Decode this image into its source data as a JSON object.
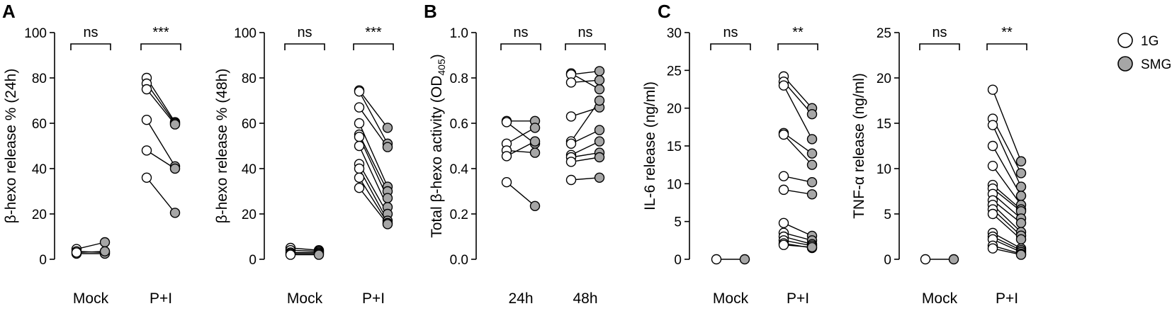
{
  "figure": {
    "panel_letters": [
      "A",
      "B",
      "C"
    ],
    "legend": [
      {
        "label": "1G",
        "color": "#ffffff"
      },
      {
        "label": "SMG",
        "color": "#a6a6a6"
      }
    ]
  },
  "chart_data": [
    {
      "type": "scatter",
      "panel": "A",
      "ylabel": "β-hexo release % (24h)",
      "ylim": [
        0,
        100
      ],
      "yticks": [
        "0",
        "20",
        "40",
        "60",
        "80",
        "100"
      ],
      "categories": [
        "Mock",
        "P+I"
      ],
      "significance": [
        "ns",
        "***"
      ],
      "series": [
        {
          "category": "Mock",
          "pairs": [
            [
              4.5,
              7.5
            ],
            [
              3.5,
              3.0
            ],
            [
              2.5,
              2.5
            ],
            [
              3.0,
              3.5
            ]
          ]
        },
        {
          "category": "P+I",
          "pairs": [
            [
              80,
              60.5
            ],
            [
              77.5,
              60
            ],
            [
              75,
              59.5
            ],
            [
              61.5,
              41
            ],
            [
              48,
              40
            ],
            [
              36,
              20.5
            ]
          ]
        }
      ]
    },
    {
      "type": "scatter",
      "panel": "A",
      "ylabel": "β-hexo release % (48h)",
      "ylim": [
        0,
        100
      ],
      "yticks": [
        "0",
        "20",
        "40",
        "60",
        "80",
        "100"
      ],
      "categories": [
        "Mock",
        "P+I"
      ],
      "significance": [
        "ns",
        "***"
      ],
      "series": [
        {
          "category": "Mock",
          "pairs": [
            [
              5,
              4
            ],
            [
              4,
              3.5
            ],
            [
              3,
              3
            ],
            [
              2.5,
              2.5
            ],
            [
              2,
              2
            ]
          ]
        },
        {
          "category": "P+I",
          "pairs": [
            [
              74.5,
              58
            ],
            [
              74,
              51
            ],
            [
              67,
              49.5
            ],
            [
              60,
              32
            ],
            [
              55,
              30
            ],
            [
              54,
              27
            ],
            [
              50,
              23
            ],
            [
              42,
              20
            ],
            [
              40,
              17
            ],
            [
              36,
              16
            ],
            [
              31.5,
              15.5
            ]
          ]
        }
      ]
    },
    {
      "type": "scatter",
      "panel": "B",
      "ylabel": "Total β-hexo activity (OD",
      "ylabel_subscript": "405",
      "ylabel_suffix": ")",
      "ylim": [
        0,
        1
      ],
      "yticks": [
        "0.0",
        "0.2",
        "0.4",
        "0.6",
        "0.8",
        "1.0"
      ],
      "categories": [
        "24h",
        "48h"
      ],
      "significance": [
        "ns",
        "ns"
      ],
      "series": [
        {
          "category": "24h",
          "pairs": [
            [
              0.61,
              0.61
            ],
            [
              0.605,
              0.51
            ],
            [
              0.51,
              0.58
            ],
            [
              0.48,
              0.47
            ],
            [
              0.455,
              0.52
            ],
            [
              0.34,
              0.235
            ]
          ]
        },
        {
          "category": "48h",
          "pairs": [
            [
              0.82,
              0.75
            ],
            [
              0.815,
              0.83
            ],
            [
              0.78,
              0.79
            ],
            [
              0.63,
              0.67
            ],
            [
              0.52,
              0.7
            ],
            [
              0.51,
              0.57
            ],
            [
              0.46,
              0.52
            ],
            [
              0.45,
              0.47
            ],
            [
              0.43,
              0.45
            ],
            [
              0.35,
              0.36
            ]
          ]
        }
      ]
    },
    {
      "type": "scatter",
      "panel": "C",
      "ylabel": "IL-6 release (ng/ml)",
      "ylim": [
        0,
        30
      ],
      "yticks": [
        "0",
        "5",
        "10",
        "15",
        "20",
        "25",
        "30"
      ],
      "categories": [
        "Mock",
        "P+I"
      ],
      "significance": [
        "ns",
        "**"
      ],
      "series": [
        {
          "category": "Mock",
          "pairs": [
            [
              0,
              0
            ]
          ]
        },
        {
          "category": "P+I",
          "pairs": [
            [
              24.2,
              20
            ],
            [
              23.5,
              19.2
            ],
            [
              23,
              15.9
            ],
            [
              16.7,
              14
            ],
            [
              16.5,
              12.5
            ],
            [
              11,
              10.2
            ],
            [
              9.2,
              8.6
            ],
            [
              4.8,
              3.1
            ],
            [
              3.5,
              2.5
            ],
            [
              3,
              2
            ],
            [
              2.5,
              1.8
            ],
            [
              2.1,
              1.5
            ],
            [
              1.9,
              1.6
            ]
          ]
        }
      ]
    },
    {
      "type": "scatter",
      "panel": "C",
      "ylabel": "TNF-α release (ng/ml)",
      "ylim": [
        0,
        25
      ],
      "yticks": [
        "0",
        "5",
        "10",
        "15",
        "20",
        "25"
      ],
      "categories": [
        "Mock",
        "P+I"
      ],
      "significance": [
        "ns",
        "**"
      ],
      "series": [
        {
          "category": "Mock",
          "pairs": [
            [
              0,
              0
            ]
          ]
        },
        {
          "category": "P+I",
          "pairs": [
            [
              18.7,
              10.8
            ],
            [
              15.5,
              9.5
            ],
            [
              14.8,
              8
            ],
            [
              12.5,
              7
            ],
            [
              10.3,
              6
            ],
            [
              8.2,
              5.5
            ],
            [
              7.8,
              5.3
            ],
            [
              7.2,
              4.5
            ],
            [
              6.5,
              4
            ],
            [
              6,
              3
            ],
            [
              5.5,
              2.6
            ],
            [
              5,
              2.2
            ],
            [
              2.9,
              1.2
            ],
            [
              2.5,
              1.0
            ],
            [
              2.2,
              0.8
            ],
            [
              1.5,
              0.6
            ],
            [
              1.2,
              0.5
            ]
          ]
        }
      ]
    }
  ]
}
